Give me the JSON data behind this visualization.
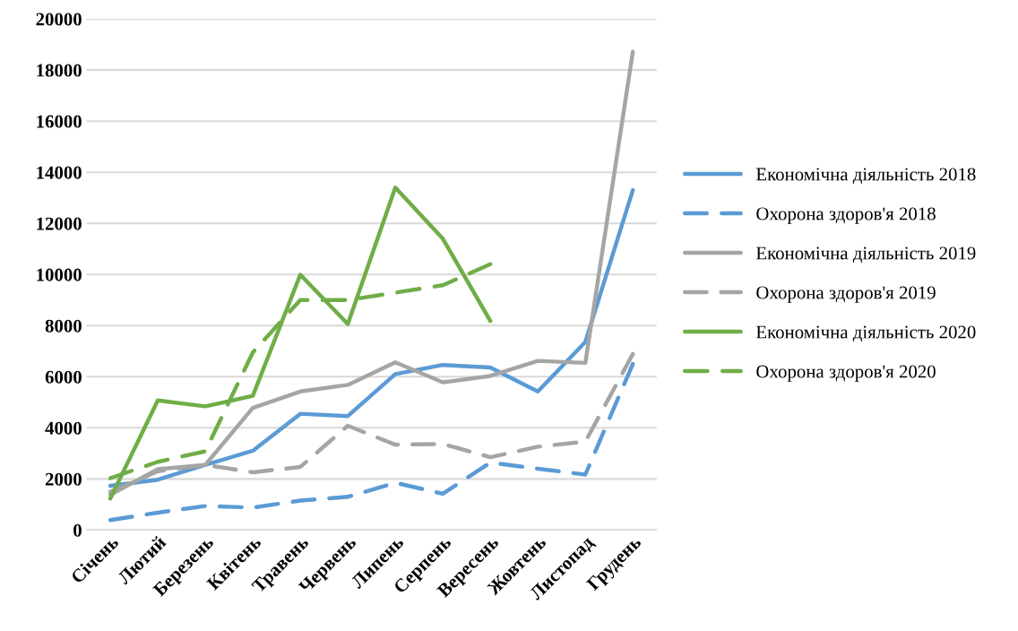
{
  "chart_data": {
    "type": "line",
    "categories": [
      "Січень",
      "Лютий",
      "Березень",
      "Квітень",
      "Травень",
      "Червень",
      "Липень",
      "Серпень",
      "Вересень",
      "Жовтень",
      "Листопад",
      "Грудень"
    ],
    "series": [
      {
        "name": "Економічна діяльність 2018",
        "color": "#5b9bd5",
        "line_style": "solid",
        "values": [
          1730,
          1970,
          2550,
          3100,
          4550,
          4460,
          6100,
          6460,
          6360,
          5420,
          7360,
          13300
        ]
      },
      {
        "name": "Охорона здоров'я 2018",
        "color": "#5b9bd5",
        "line_style": "dashed",
        "values": [
          390,
          680,
          940,
          880,
          1150,
          1300,
          1850,
          1420,
          2640,
          2400,
          2170,
          6500
        ]
      },
      {
        "name": "Економічна діяльність 2019",
        "color": "#a5a5a5",
        "line_style": "solid",
        "values": [
          1380,
          2380,
          2550,
          4780,
          5420,
          5680,
          6560,
          5780,
          6030,
          6620,
          6540,
          18720
        ]
      },
      {
        "name": "Охорона здоров'я 2019",
        "color": "#a5a5a5",
        "line_style": "dashed",
        "values": [
          1500,
          2300,
          2550,
          2260,
          2470,
          4080,
          3340,
          3370,
          2850,
          3260,
          3460,
          6890
        ]
      },
      {
        "name": "Економічна діяльність 2020",
        "color": "#70ad47",
        "line_style": "solid",
        "values": [
          1230,
          5070,
          4840,
          5250,
          9990,
          8060,
          13400,
          11400,
          8180,
          null,
          null,
          null
        ]
      },
      {
        "name": "Охорона здоров'я 2020",
        "color": "#70ad47",
        "line_style": "dashed",
        "values": [
          2030,
          2670,
          3080,
          6950,
          9000,
          9000,
          9290,
          9580,
          10400,
          null,
          null,
          null
        ]
      }
    ],
    "ylim": [
      0,
      20000
    ],
    "yticks": [
      0,
      2000,
      4000,
      6000,
      8000,
      10000,
      12000,
      14000,
      16000,
      18000,
      20000
    ],
    "grid": "y",
    "legend": "right",
    "marker": "none"
  }
}
